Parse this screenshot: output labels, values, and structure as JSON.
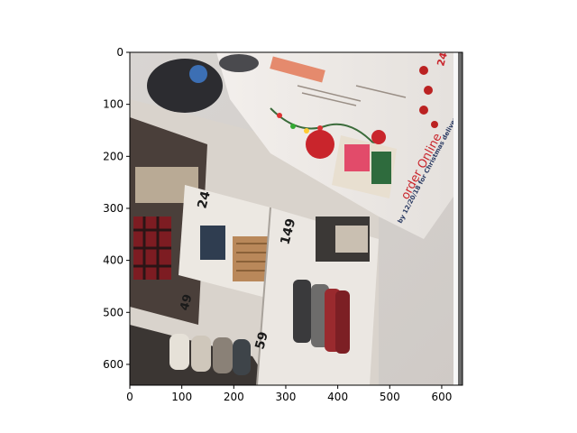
{
  "figure": {
    "description_free": true,
    "axes": {
      "x_ticks": [
        "0",
        "100",
        "200",
        "300",
        "400",
        "500",
        "600"
      ],
      "y_ticks": [
        "0",
        "100",
        "200",
        "300",
        "400",
        "500",
        "600"
      ],
      "x_range": [
        0,
        640
      ],
      "y_range": [
        640,
        0
      ]
    },
    "image_text": {
      "order_online": "order Online",
      "order_date": "by 12/20/18 for Christmas delivery",
      "price_a": "24",
      "price_b": "149",
      "price_c": "49",
      "price_d": "59",
      "price_e": "24"
    },
    "colors": {
      "axis": "#000000",
      "background": "#ffffff",
      "paper": "#e9e6e2",
      "shelf_red": "#8d1d22",
      "elf_red": "#c9252c"
    }
  }
}
